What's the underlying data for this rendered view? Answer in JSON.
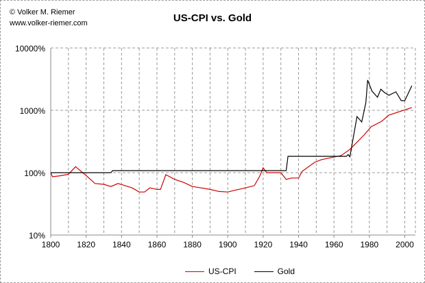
{
  "credit": {
    "line1": "© Volker M. Riemer",
    "line2": "www.volker-riemer.com"
  },
  "chart_data": {
    "type": "line",
    "title": "US-CPI vs. Gold",
    "xlabel": "",
    "ylabel": "",
    "xlim": [
      1800,
      2006
    ],
    "ylim": [
      10,
      10000
    ],
    "yscale": "log",
    "x_ticks": [
      "1800",
      "1820",
      "1840",
      "1860",
      "1880",
      "1900",
      "1920",
      "1940",
      "1960",
      "1980",
      "2000"
    ],
    "y_ticks": [
      {
        "value": 10,
        "label": "10%"
      },
      {
        "value": 100,
        "label": "100%"
      },
      {
        "value": 1000,
        "label": "1000%"
      },
      {
        "value": 10000,
        "label": "10000%"
      }
    ],
    "grid": true,
    "legend_position": "bottom",
    "series": [
      {
        "name": "US-CPI",
        "color": "#cc0000",
        "x": [
          1800,
          1801,
          1805,
          1810,
          1814,
          1818,
          1820,
          1825,
          1830,
          1834,
          1838,
          1842,
          1846,
          1850,
          1853,
          1856,
          1860,
          1862,
          1865,
          1870,
          1875,
          1880,
          1885,
          1890,
          1895,
          1900,
          1905,
          1910,
          1915,
          1918,
          1920,
          1922,
          1926,
          1930,
          1933,
          1936,
          1940,
          1942,
          1949,
          1953,
          1964,
          1969,
          1977,
          1981,
          1987,
          1991,
          2004
        ],
        "y": [
          100,
          86,
          89,
          94,
          125,
          100,
          90,
          67,
          65,
          60,
          67,
          62,
          57,
          49,
          49,
          57,
          54,
          54,
          93,
          78,
          70,
          60,
          57,
          54,
          50,
          49,
          53,
          57,
          62,
          87,
          120,
          100,
          100,
          100,
          78,
          82,
          82,
          105,
          146,
          162,
          188,
          236,
          402,
          545,
          667,
          837,
          1110
        ]
      },
      {
        "name": "Gold",
        "color": "#000000",
        "x": [
          1800,
          1834,
          1835,
          1933,
          1934,
          1967,
          1968,
          1969,
          1973,
          1975.7,
          1978,
          1979,
          1981.5,
          1984.6,
          1986.5,
          1988.5,
          1991,
          1995,
          1998,
          2000,
          2004
        ],
        "y": [
          100,
          100,
          108,
          108,
          183,
          183,
          195,
          180,
          795,
          650,
          1320,
          3050,
          2030,
          1620,
          2180,
          1930,
          1740,
          1980,
          1430,
          1430,
          2480
        ]
      }
    ]
  }
}
